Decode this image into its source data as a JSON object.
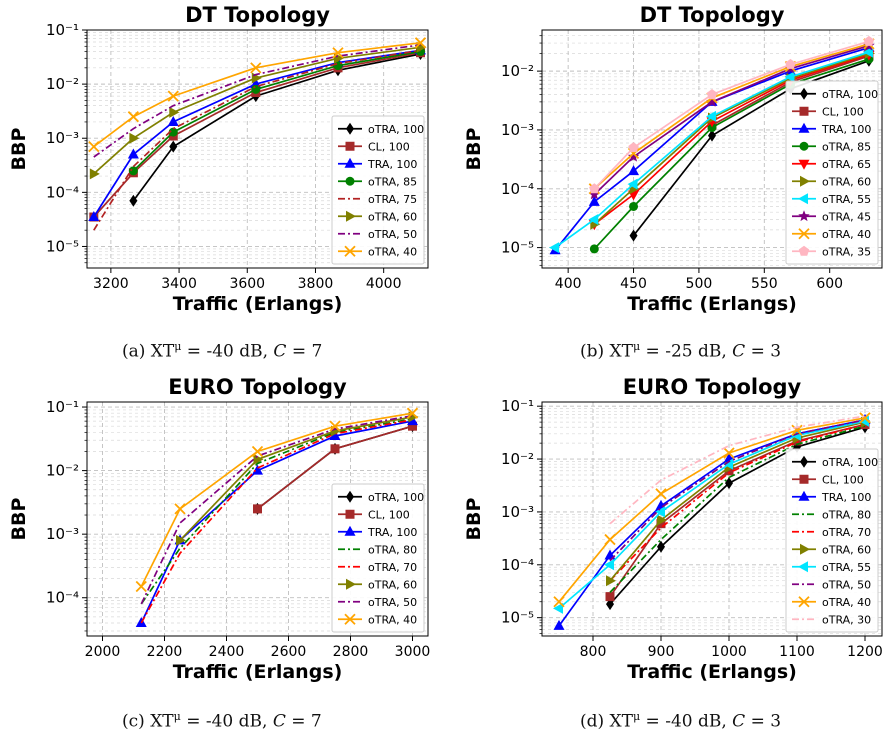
{
  "captions": [
    {
      "letter": "(a) XT",
      "sup": "μ",
      "mid": " = -40 dB, ",
      "var": "C",
      "tail": " = 7"
    },
    {
      "letter": "(b) XT",
      "sup": "μ",
      "mid": " = -25 dB, ",
      "var": "C",
      "tail": " = 3"
    },
    {
      "letter": "(c) XT",
      "sup": "μ",
      "mid": " = -40 dB, ",
      "var": "C",
      "tail": " = 7"
    },
    {
      "letter": "(d) XT",
      "sup": "μ",
      "mid": " = -40 dB, ",
      "var": "C",
      "tail": " = 3"
    }
  ],
  "chart_data": [
    {
      "type": "line",
      "title": "DT Topology",
      "xlabel": "Traffic (Erlangs)",
      "ylabel": "BBP",
      "yscale": "log",
      "xlim": [
        3130,
        4130
      ],
      "ylim": [
        4e-06,
        0.1
      ],
      "xticks": [
        3200,
        3400,
        3600,
        3800,
        4000
      ],
      "yticks": [
        1e-05,
        0.0001,
        0.001,
        0.01,
        0.1
      ],
      "grid": true,
      "legend": "lower-right",
      "x": [
        3150,
        3266,
        3383,
        3625,
        3866,
        4108
      ],
      "series": [
        {
          "name": "oTRA, 100",
          "color": "#000000",
          "marker": "diamond",
          "dash": "solid",
          "values": [
            null,
            7e-05,
            0.0007,
            0.006,
            0.018,
            0.036
          ]
        },
        {
          "name": "CL, 100",
          "color": "#a52a2a",
          "marker": "square",
          "dash": "solid",
          "values": [
            3.5e-05,
            0.00023,
            0.0011,
            0.007,
            0.02,
            0.038
          ]
        },
        {
          "name": "TRA, 100",
          "color": "#0000ff",
          "marker": "triangle-up",
          "dash": "solid",
          "values": [
            3.5e-05,
            0.0005,
            0.002,
            0.01,
            0.025,
            0.042
          ]
        },
        {
          "name": "oTRA, 85",
          "color": "#008000",
          "marker": "circle",
          "dash": "solid",
          "values": [
            null,
            0.00025,
            0.0013,
            0.008,
            0.022,
            0.04
          ]
        },
        {
          "name": "oTRA, 75",
          "color": "#b22222",
          "marker": "none",
          "dash": "dashdot",
          "values": [
            2e-05,
            0.0003,
            0.0015,
            0.009,
            0.024,
            0.042
          ]
        },
        {
          "name": "oTRA, 60",
          "color": "#808000",
          "marker": "triangle-right",
          "dash": "solid",
          "values": [
            0.00022,
            0.001,
            0.003,
            0.013,
            0.03,
            0.048
          ]
        },
        {
          "name": "oTRA, 50",
          "color": "#800080",
          "marker": "none",
          "dash": "dashdot",
          "values": [
            0.00045,
            0.0015,
            0.004,
            0.015,
            0.033,
            0.053
          ]
        },
        {
          "name": "oTRA, 40",
          "color": "#ffa500",
          "marker": "x",
          "dash": "solid",
          "values": [
            0.0007,
            0.0025,
            0.006,
            0.02,
            0.038,
            0.058
          ]
        }
      ]
    },
    {
      "type": "line",
      "title": "DT Topology",
      "xlabel": "Traffic (Erlangs)",
      "ylabel": "BBP",
      "yscale": "log",
      "xlim": [
        380,
        640
      ],
      "ylim": [
        4.5e-06,
        0.05
      ],
      "xticks": [
        400,
        450,
        500,
        550,
        600
      ],
      "yticks": [
        1e-05,
        0.0001,
        0.001,
        0.01
      ],
      "grid": true,
      "legend": "lower-right",
      "x": [
        390,
        420,
        450,
        510,
        570,
        630
      ],
      "series": [
        {
          "name": "oTRA, 100",
          "color": "#000000",
          "marker": "diamond",
          "dash": "solid",
          "values": [
            null,
            null,
            1.6e-05,
            0.0008,
            0.005,
            0.015
          ]
        },
        {
          "name": "CL, 100",
          "color": "#a52a2a",
          "marker": "square",
          "dash": "solid",
          "values": [
            null,
            null,
            null,
            0.0012,
            0.0065,
            0.018
          ]
        },
        {
          "name": "TRA, 100",
          "color": "#0000ff",
          "marker": "triangle-up",
          "dash": "solid",
          "values": [
            9e-06,
            6e-05,
            0.0002,
            0.003,
            0.01,
            0.025
          ]
        },
        {
          "name": "oTRA, 85",
          "color": "#008000",
          "marker": "circle",
          "dash": "solid",
          "values": [
            null,
            9.5e-06,
            5e-05,
            0.0011,
            0.006,
            0.016
          ]
        },
        {
          "name": "oTRA, 65",
          "color": "#ff0000",
          "marker": "triangle-down",
          "dash": "solid",
          "values": [
            null,
            2.5e-05,
            8e-05,
            0.0014,
            0.007,
            0.019
          ]
        },
        {
          "name": "oTRA, 60",
          "color": "#808000",
          "marker": "triangle-right",
          "dash": "solid",
          "values": [
            null,
            2.5e-05,
            0.0001,
            0.0016,
            0.0075,
            0.02
          ]
        },
        {
          "name": "oTRA, 55",
          "color": "#00e5ff",
          "marker": "triangle-left",
          "dash": "solid",
          "values": [
            1e-05,
            3e-05,
            0.00012,
            0.0017,
            0.008,
            0.021
          ]
        },
        {
          "name": "oTRA, 45",
          "color": "#800080",
          "marker": "star",
          "dash": "solid",
          "values": [
            null,
            8e-05,
            0.00035,
            0.003,
            0.011,
            0.027
          ]
        },
        {
          "name": "oTRA, 40",
          "color": "#ffa500",
          "marker": "x",
          "dash": "solid",
          "values": [
            null,
            0.0001,
            0.0004,
            0.0035,
            0.012,
            0.029
          ]
        },
        {
          "name": "oTRA, 35",
          "color": "#ffb6c1",
          "marker": "pentagon",
          "dash": "solid",
          "values": [
            null,
            0.0001,
            0.0005,
            0.004,
            0.013,
            0.032
          ]
        }
      ]
    },
    {
      "type": "line",
      "title": "EURO Topology",
      "xlabel": "Traffic (Erlangs)",
      "ylabel": "BBP",
      "yscale": "log",
      "xlim": [
        1950,
        3050
      ],
      "ylim": [
        2.5e-05,
        0.12
      ],
      "xticks": [
        2000,
        2200,
        2400,
        2600,
        2800,
        3000
      ],
      "yticks": [
        0.0001,
        0.001,
        0.01,
        0.1
      ],
      "grid": true,
      "legend": "lower-right",
      "x": [
        2125,
        2250,
        2500,
        2750,
        3000
      ],
      "series": [
        {
          "name": "oTRA, 100",
          "color": "#000000",
          "marker": "diamond",
          "dash": "solid",
          "values": [
            null,
            null,
            0.0025,
            0.022,
            0.05
          ]
        },
        {
          "name": "CL, 100",
          "color": "#a52a2a",
          "marker": "square",
          "dash": "solid",
          "values": [
            null,
            null,
            0.0025,
            0.022,
            0.05
          ]
        },
        {
          "name": "TRA, 100",
          "color": "#0000ff",
          "marker": "triangle-up",
          "dash": "solid",
          "values": [
            4e-05,
            0.0008,
            0.01,
            0.035,
            0.06
          ]
        },
        {
          "name": "oTRA, 80",
          "color": "#008000",
          "marker": "none",
          "dash": "dashdot",
          "values": [
            8e-05,
            0.0006,
            0.013,
            0.04,
            0.065
          ]
        },
        {
          "name": "oTRA, 70",
          "color": "#ff0000",
          "marker": "none",
          "dash": "dashdot",
          "values": [
            4e-05,
            0.0005,
            0.011,
            0.038,
            0.063
          ]
        },
        {
          "name": "oTRA, 60",
          "color": "#808000",
          "marker": "triangle-right",
          "dash": "solid",
          "values": [
            null,
            0.0008,
            0.015,
            0.042,
            0.07
          ]
        },
        {
          "name": "oTRA, 50",
          "color": "#800080",
          "marker": "none",
          "dash": "dashdot",
          "values": [
            8e-05,
            0.0015,
            0.017,
            0.045,
            0.073
          ]
        },
        {
          "name": "oTRA, 40",
          "color": "#ffa500",
          "marker": "x",
          "dash": "solid",
          "values": [
            0.00015,
            0.0025,
            0.02,
            0.05,
            0.08
          ]
        }
      ]
    },
    {
      "type": "line",
      "title": "EURO Topology",
      "xlabel": "Traffic (Erlangs)",
      "ylabel": "BBP",
      "yscale": "log",
      "xlim": [
        725,
        1225
      ],
      "ylim": [
        4.5e-06,
        0.12
      ],
      "xticks": [
        800,
        900,
        1000,
        1100,
        1200
      ],
      "yticks": [
        1e-05,
        0.0001,
        0.001,
        0.01,
        0.1
      ],
      "grid": true,
      "legend": "lower-right",
      "x": [
        750,
        825,
        900,
        1000,
        1100,
        1200
      ],
      "series": [
        {
          "name": "oTRA, 100",
          "color": "#000000",
          "marker": "diamond",
          "dash": "solid",
          "values": [
            null,
            1.8e-05,
            0.00022,
            0.0035,
            0.017,
            0.04
          ]
        },
        {
          "name": "CL, 100",
          "color": "#a52a2a",
          "marker": "square",
          "dash": "solid",
          "values": [
            null,
            2.5e-05,
            0.0006,
            0.006,
            0.022,
            0.045
          ]
        },
        {
          "name": "TRA, 100",
          "color": "#0000ff",
          "marker": "triangle-up",
          "dash": "solid",
          "values": [
            7e-06,
            0.00015,
            0.0013,
            0.01,
            0.03,
            0.055
          ]
        },
        {
          "name": "oTRA, 80",
          "color": "#008000",
          "marker": "none",
          "dash": "dashdot",
          "values": [
            null,
            3e-05,
            0.0003,
            0.0045,
            0.019,
            0.042
          ]
        },
        {
          "name": "oTRA, 70",
          "color": "#ff0000",
          "marker": "none",
          "dash": "dashdot",
          "values": [
            null,
            5e-05,
            0.0005,
            0.0055,
            0.021,
            0.045
          ]
        },
        {
          "name": "oTRA, 60",
          "color": "#808000",
          "marker": "triangle-right",
          "dash": "solid",
          "values": [
            null,
            5e-05,
            0.0007,
            0.007,
            0.025,
            0.05
          ]
        },
        {
          "name": "oTRA, 55",
          "color": "#00e5ff",
          "marker": "triangle-left",
          "dash": "solid",
          "values": [
            1.5e-05,
            0.0001,
            0.001,
            0.008,
            0.028,
            0.052
          ]
        },
        {
          "name": "oTRA, 50",
          "color": "#800080",
          "marker": "none",
          "dash": "dashdot",
          "values": [
            null,
            0.00012,
            0.0012,
            0.009,
            0.03,
            0.055
          ]
        },
        {
          "name": "oTRA, 40",
          "color": "#ffa500",
          "marker": "x",
          "dash": "solid",
          "values": [
            2e-05,
            0.0003,
            0.0022,
            0.013,
            0.035,
            0.06
          ]
        },
        {
          "name": "oTRA, 30",
          "color": "#ffb6c1",
          "marker": "none",
          "dash": "dashdot",
          "values": [
            null,
            0.0006,
            0.004,
            0.018,
            0.04,
            0.065
          ]
        }
      ]
    }
  ]
}
